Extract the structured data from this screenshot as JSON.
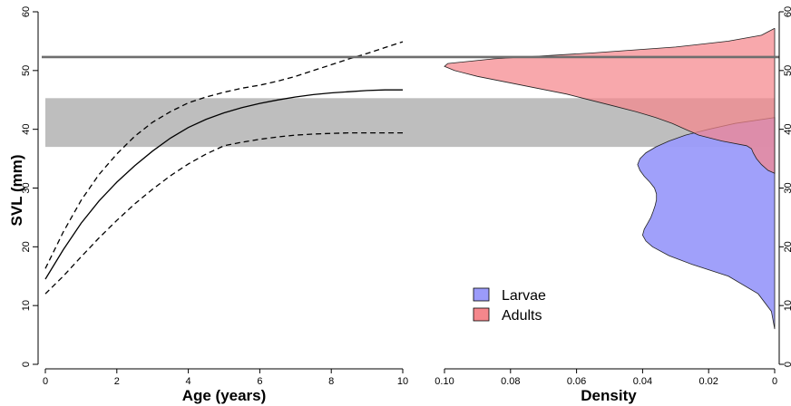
{
  "chart_data": {
    "type": "line",
    "ylabel": "SVL (mm)",
    "ylim": [
      0,
      60
    ],
    "yticks": [
      0,
      10,
      20,
      30,
      40,
      50,
      60
    ],
    "right_axis_ticks": [
      0,
      10,
      20,
      30,
      40,
      50,
      60
    ],
    "band": {
      "ymin": 37,
      "ymax": 45.3,
      "color": "#bebebe"
    },
    "hline": {
      "y": 52.3,
      "color": "#6e6e6e"
    },
    "panels": [
      {
        "type": "line",
        "xlabel": "Age (years)",
        "xlim": [
          0,
          10
        ],
        "xticks": [
          0,
          2,
          4,
          6,
          8,
          10
        ],
        "series": [
          {
            "style": "solid",
            "x": [
              0,
              0.5,
              1,
              1.5,
              2,
              2.5,
              3,
              3.5,
              4,
              4.5,
              5,
              5.5,
              6,
              6.5,
              7,
              7.5,
              8,
              8.5,
              9,
              9.5,
              10
            ],
            "y": [
              14.5,
              19.5,
              24,
              27.8,
              31,
              33.8,
              36.3,
              38.5,
              40.3,
              41.7,
              42.8,
              43.7,
              44.4,
              45,
              45.5,
              45.9,
              46.2,
              46.4,
              46.6,
              46.7,
              46.7
            ]
          },
          {
            "style": "dashed",
            "x": [
              0,
              0.5,
              1,
              1.5,
              2,
              2.5,
              3,
              3.5,
              4,
              4.5,
              5,
              5.5,
              6,
              6.5,
              7,
              7.5,
              8,
              8.5,
              9,
              9.5,
              10
            ],
            "y": [
              16.3,
              22.5,
              27.9,
              32.3,
              35.8,
              38.8,
              41.2,
              43,
              44.5,
              45.5,
              46.3,
              47,
              47.5,
              48.2,
              49,
              50,
              51,
              52,
              52.9,
              53.9,
              54.9
            ]
          },
          {
            "style": "dashed",
            "x": [
              0,
              0.5,
              1,
              1.5,
              2,
              2.5,
              3,
              3.5,
              4,
              4.5,
              5,
              5.5,
              6,
              6.5,
              7,
              7.5,
              8,
              8.5,
              9,
              9.5,
              10
            ],
            "y": [
              12,
              15,
              18.3,
              21.5,
              24.5,
              27.3,
              29.8,
              32.1,
              34.1,
              35.8,
              37.2,
              37.8,
              38.3,
              38.7,
              39,
              39.2,
              39.3,
              39.4,
              39.4,
              39.4,
              39.4
            ]
          }
        ]
      },
      {
        "type": "area",
        "xlabel": "Density",
        "xlim": [
          0.1,
          0
        ],
        "xticks": [
          0.1,
          0.08,
          0.06,
          0.04,
          0.02,
          0
        ],
        "xtick_labels": [
          "0.10",
          "0.08",
          "0.06",
          "0.04",
          "0.02",
          "0"
        ],
        "legend_position": "bottom-center",
        "series": [
          {
            "name": "Larvae",
            "color": "#9b9bfa",
            "y": [
              6,
              9,
              12,
              15,
              17,
              18.5,
              20,
              21,
              22,
              23,
              24,
              25,
              26,
              27,
              28,
              29,
              30,
              31,
              32,
              33,
              34,
              35,
              36,
              37,
              38,
              39,
              40,
              41,
              42
            ],
            "density": [
              0,
              0.001,
              0.005,
              0.014,
              0.025,
              0.032,
              0.037,
              0.039,
              0.04,
              0.0395,
              0.0385,
              0.0375,
              0.0368,
              0.0362,
              0.0358,
              0.0358,
              0.0364,
              0.0378,
              0.0395,
              0.0408,
              0.0415,
              0.0408,
              0.039,
              0.036,
              0.032,
              0.027,
              0.02,
              0.012,
              0
            ]
          },
          {
            "name": "Adults",
            "color": "#f5878c",
            "y": [
              32.5,
              33,
              34,
              35,
              36,
              36.7,
              37.2,
              38,
              39,
              40,
              41,
              42,
              43,
              44,
              45,
              46,
              47,
              48,
              49,
              50,
              50.7,
              51.2,
              52,
              53,
              54,
              55,
              56,
              57.2
            ],
            "density": [
              0,
              0.002,
              0.004,
              0.0055,
              0.0065,
              0.007,
              0.0085,
              0.016,
              0.023,
              0.027,
              0.031,
              0.036,
              0.042,
              0.049,
              0.056,
              0.063,
              0.072,
              0.081,
              0.09,
              0.097,
              0.1,
              0.099,
              0.085,
              0.055,
              0.03,
              0.014,
              0.004,
              0
            ]
          }
        ]
      }
    ]
  }
}
